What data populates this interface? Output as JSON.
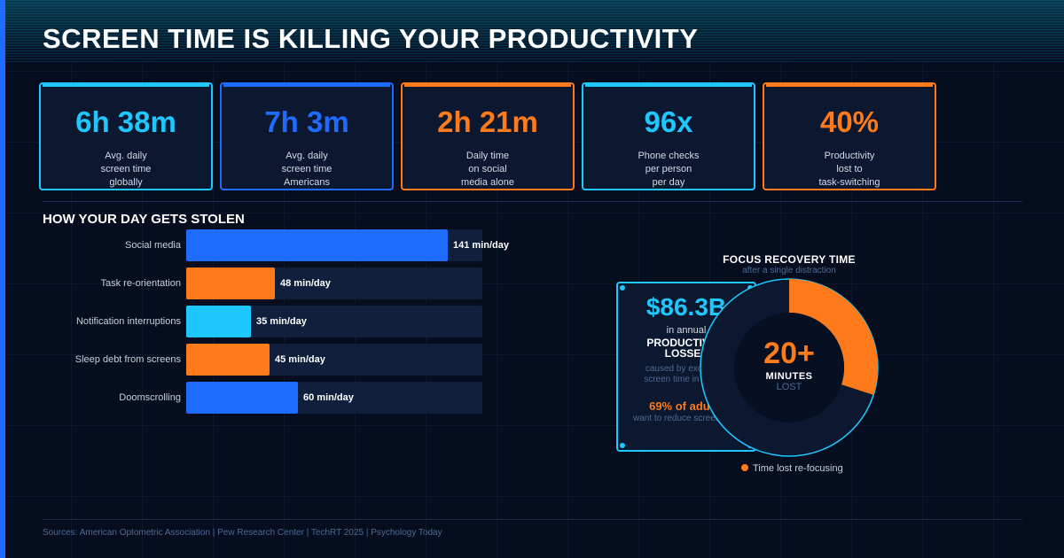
{
  "title": "SCREEN TIME IS KILLING YOUR PRODUCTIVITY",
  "colors": {
    "cyan": "#1ec8ff",
    "blue": "#1f6bff",
    "orange": "#ff7a1a",
    "background": "#060d1f",
    "panel": "#0c1830"
  },
  "stats": [
    {
      "value": "6h 38m",
      "desc": "Avg. daily\nscreen time\nglobally",
      "color": "#1ec8ff"
    },
    {
      "value": "7h 3m",
      "desc": "Avg. daily\nscreen time\nAmericans",
      "color": "#1f6bff"
    },
    {
      "value": "2h 21m",
      "desc": "Daily time\non social\nmedia alone",
      "color": "#ff7a1a"
    },
    {
      "value": "96x",
      "desc": "Phone checks\nper person\nper day",
      "color": "#1ec8ff"
    },
    {
      "value": "40%",
      "desc": "Productivity\nlost to\ntask-switching",
      "color": "#ff7a1a"
    }
  ],
  "bars_section": {
    "title": "HOW YOUR DAY GETS STOLEN"
  },
  "chart_data": {
    "type": "bar",
    "orientation": "horizontal",
    "categories": [
      "Social media",
      "Task re-orientation",
      "Notification interruptions",
      "Sleep debt from screens",
      "Doomscrolling"
    ],
    "values": [
      141,
      48,
      35,
      45,
      60
    ],
    "value_labels": [
      "141 min/day",
      "48 min/day",
      "35 min/day",
      "45 min/day",
      "60 min/day"
    ],
    "colors": [
      "#1f6bff",
      "#ff7a1a",
      "#1ec8ff",
      "#ff7a1a",
      "#1f6bff"
    ],
    "xlim": [
      0,
      160
    ],
    "grid": false
  },
  "loss_box": {
    "amount": "$86.3B",
    "line1": "in annual",
    "line2": "PRODUCTIVITY",
    "line3": "LOSSES",
    "note1": "caused by excessive",
    "note2": "screen time in the US",
    "stat": "69% of adults",
    "stat_note": "want to reduce screen time"
  },
  "focus": {
    "title": "FOCUS RECOVERY TIME",
    "subtitle": "after a single distraction",
    "value": "20+",
    "unit": "MINUTES",
    "unit2": "LOST",
    "legend": "Time lost re-focusing",
    "fraction": 0.3
  },
  "sources": "Sources: American Optometric Association  |  Pew Research Center  |  TechRT 2025  |  Psychology Today"
}
